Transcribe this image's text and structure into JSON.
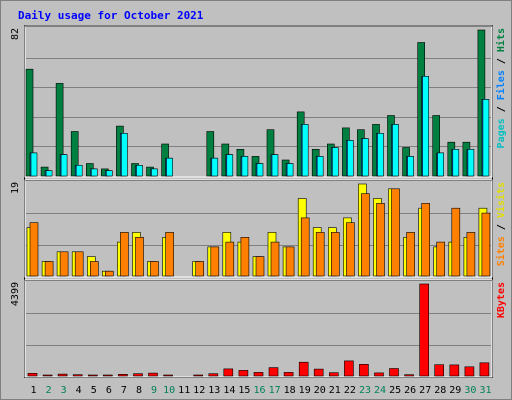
{
  "chart_data": {
    "type": "bar",
    "title": "Daily usage for October 2021",
    "categories": [
      "1",
      "2",
      "3",
      "4",
      "5",
      "6",
      "7",
      "8",
      "9",
      "10",
      "11",
      "12",
      "13",
      "14",
      "15",
      "16",
      "17",
      "18",
      "19",
      "20",
      "21",
      "22",
      "23",
      "24",
      "25",
      "26",
      "27",
      "28",
      "29",
      "30",
      "31"
    ],
    "weekend_days": [
      "2",
      "3",
      "9",
      "10",
      "16",
      "17",
      "23",
      "24",
      "30",
      "31"
    ],
    "panels": [
      {
        "id": "hits",
        "ymax_label": "82",
        "ymax": 82,
        "right_label_parts": [
          "Pages",
          " / ",
          "Files",
          " / ",
          "Hits"
        ],
        "series": [
          {
            "name": "Hits",
            "color": "#008040",
            "values": [
              60,
              5,
              52,
              25,
              7,
              4,
              28,
              7,
              5,
              18,
              0,
              0,
              25,
              18,
              15,
              11,
              26,
              9,
              36,
              15,
              18,
              27,
              26,
              29,
              34,
              16,
              75,
              34,
              19,
              19,
              82
            ]
          },
          {
            "name": "Files",
            "color": "#0080ff",
            "values": [
              13,
              3,
              12,
              6,
              4,
              3,
              24,
              6,
              4,
              10,
              0,
              0,
              10,
              12,
              11,
              7,
              12,
              7,
              29,
              11,
              16,
              20,
              21,
              24,
              29,
              11,
              56,
              13,
              15,
              15,
              43
            ]
          },
          {
            "name": "Pages",
            "color": "#00ffff",
            "values": [
              13,
              3,
              12,
              6,
              4,
              3,
              24,
              6,
              4,
              10,
              0,
              0,
              10,
              12,
              11,
              7,
              12,
              7,
              29,
              11,
              16,
              20,
              21,
              24,
              29,
              11,
              56,
              13,
              15,
              15,
              43
            ]
          }
        ]
      },
      {
        "id": "visits",
        "ymax_label": "19",
        "ymax": 19,
        "right_label_parts": [
          "Sites",
          " / ",
          "Visits"
        ],
        "series": [
          {
            "name": "Visits",
            "color": "#ffff00",
            "values": [
              10,
              3,
              5,
              5,
              4,
              1,
              7,
              9,
              3,
              8,
              0,
              3,
              6,
              9,
              7,
              4,
              9,
              6,
              16,
              10,
              10,
              12,
              19,
              16,
              18,
              8,
              14,
              6,
              7,
              8,
              14
            ]
          },
          {
            "name": "Sites",
            "color": "#ff8000",
            "values": [
              11,
              3,
              5,
              5,
              3,
              1,
              9,
              8,
              3,
              9,
              0,
              3,
              6,
              7,
              8,
              4,
              7,
              6,
              12,
              9,
              9,
              11,
              17,
              15,
              18,
              9,
              15,
              7,
              14,
              9,
              13
            ]
          }
        ]
      },
      {
        "id": "kbytes",
        "ymax_label": "4399",
        "ymax": 4399,
        "right_label_parts": [
          "KBytes"
        ],
        "series": [
          {
            "name": "KBytes",
            "color": "#ff0000",
            "values": [
              130,
              50,
              90,
              60,
              50,
              50,
              80,
              110,
              140,
              40,
              0,
              50,
              110,
              340,
              270,
              170,
              400,
              170,
              660,
              330,
              160,
              720,
              560,
              150,
              360,
              60,
              4399,
              540,
              530,
              440,
              630
            ]
          }
        ]
      }
    ]
  }
}
